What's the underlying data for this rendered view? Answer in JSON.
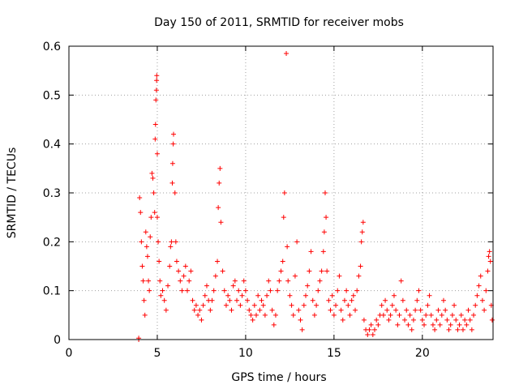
{
  "chart_data": {
    "type": "scatter",
    "title": "Day 150 of 2011, SRMTID for receiver mobs",
    "xlabel": "GPS time / hours",
    "ylabel": "SRMTID / TECUs",
    "xlim": [
      0,
      24
    ],
    "ylim": [
      0,
      0.6
    ],
    "xticks": [
      "0",
      "5",
      "10",
      "15",
      "20"
    ],
    "yticks": [
      "0",
      "0.1",
      "0.2",
      "0.3",
      "0.4",
      "0.5",
      "0.6"
    ],
    "xtick_values": [
      0,
      5,
      10,
      15,
      20
    ],
    "ytick_values": [
      0,
      0.1,
      0.2,
      0.3,
      0.4,
      0.5,
      0.6
    ],
    "grid": true,
    "marker": "+",
    "color": "#ff0000",
    "series": [
      {
        "name": "mobs",
        "points": [
          [
            3.95,
            0.0
          ],
          [
            3.95,
            0.003
          ],
          [
            4.0,
            0.29
          ],
          [
            4.05,
            0.26
          ],
          [
            4.1,
            0.2
          ],
          [
            4.15,
            0.15
          ],
          [
            4.2,
            0.12
          ],
          [
            4.25,
            0.08
          ],
          [
            4.3,
            0.05
          ],
          [
            4.35,
            0.22
          ],
          [
            4.4,
            0.19
          ],
          [
            4.45,
            0.17
          ],
          [
            4.5,
            0.12
          ],
          [
            4.55,
            0.1
          ],
          [
            4.6,
            0.21
          ],
          [
            4.65,
            0.25
          ],
          [
            4.7,
            0.34
          ],
          [
            4.75,
            0.33
          ],
          [
            4.8,
            0.3
          ],
          [
            4.85,
            0.26
          ],
          [
            4.88,
            0.41
          ],
          [
            4.9,
            0.44
          ],
          [
            4.92,
            0.49
          ],
          [
            4.95,
            0.51
          ],
          [
            4.96,
            0.53
          ],
          [
            4.97,
            0.54
          ],
          [
            5.0,
            0.38
          ],
          [
            5.0,
            0.25
          ],
          [
            5.05,
            0.2
          ],
          [
            5.1,
            0.16
          ],
          [
            5.15,
            0.12
          ],
          [
            5.2,
            0.09
          ],
          [
            5.3,
            0.1
          ],
          [
            5.4,
            0.08
          ],
          [
            5.5,
            0.06
          ],
          [
            5.6,
            0.11
          ],
          [
            5.7,
            0.15
          ],
          [
            5.75,
            0.19
          ],
          [
            5.8,
            0.2
          ],
          [
            5.85,
            0.32
          ],
          [
            5.87,
            0.36
          ],
          [
            5.9,
            0.4
          ],
          [
            5.92,
            0.42
          ],
          [
            6.0,
            0.3
          ],
          [
            6.05,
            0.2
          ],
          [
            6.1,
            0.16
          ],
          [
            6.2,
            0.14
          ],
          [
            6.3,
            0.12
          ],
          [
            6.4,
            0.1
          ],
          [
            6.5,
            0.13
          ],
          [
            6.6,
            0.15
          ],
          [
            6.7,
            0.1
          ],
          [
            6.8,
            0.12
          ],
          [
            6.9,
            0.14
          ],
          [
            7.0,
            0.08
          ],
          [
            7.1,
            0.06
          ],
          [
            7.2,
            0.07
          ],
          [
            7.3,
            0.05
          ],
          [
            7.4,
            0.06
          ],
          [
            7.5,
            0.04
          ],
          [
            7.6,
            0.07
          ],
          [
            7.7,
            0.09
          ],
          [
            7.8,
            0.11
          ],
          [
            7.9,
            0.08
          ],
          [
            8.0,
            0.06
          ],
          [
            8.1,
            0.08
          ],
          [
            8.2,
            0.1
          ],
          [
            8.3,
            0.13
          ],
          [
            8.4,
            0.16
          ],
          [
            8.45,
            0.27
          ],
          [
            8.5,
            0.32
          ],
          [
            8.55,
            0.35
          ],
          [
            8.6,
            0.24
          ],
          [
            8.7,
            0.14
          ],
          [
            8.8,
            0.1
          ],
          [
            8.9,
            0.07
          ],
          [
            9.0,
            0.09
          ],
          [
            9.1,
            0.08
          ],
          [
            9.2,
            0.06
          ],
          [
            9.3,
            0.11
          ],
          [
            9.4,
            0.12
          ],
          [
            9.5,
            0.08
          ],
          [
            9.6,
            0.1
          ],
          [
            9.7,
            0.07
          ],
          [
            9.8,
            0.09
          ],
          [
            9.9,
            0.12
          ],
          [
            10.0,
            0.1
          ],
          [
            10.1,
            0.08
          ],
          [
            10.2,
            0.06
          ],
          [
            10.3,
            0.05
          ],
          [
            10.4,
            0.04
          ],
          [
            10.5,
            0.07
          ],
          [
            10.6,
            0.05
          ],
          [
            10.7,
            0.09
          ],
          [
            10.8,
            0.06
          ],
          [
            10.9,
            0.08
          ],
          [
            11.0,
            0.07
          ],
          [
            11.1,
            0.05
          ],
          [
            11.2,
            0.09
          ],
          [
            11.3,
            0.12
          ],
          [
            11.4,
            0.1
          ],
          [
            11.5,
            0.06
          ],
          [
            11.6,
            0.03
          ],
          [
            11.7,
            0.05
          ],
          [
            11.8,
            0.1
          ],
          [
            11.9,
            0.12
          ],
          [
            12.0,
            0.14
          ],
          [
            12.1,
            0.16
          ],
          [
            12.15,
            0.25
          ],
          [
            12.2,
            0.3
          ],
          [
            12.3,
            0.585
          ],
          [
            12.35,
            0.19
          ],
          [
            12.4,
            0.12
          ],
          [
            12.5,
            0.09
          ],
          [
            12.6,
            0.07
          ],
          [
            12.7,
            0.05
          ],
          [
            12.8,
            0.13
          ],
          [
            12.9,
            0.2
          ],
          [
            13.0,
            0.06
          ],
          [
            13.1,
            0.04
          ],
          [
            13.2,
            0.02
          ],
          [
            13.3,
            0.07
          ],
          [
            13.4,
            0.09
          ],
          [
            13.5,
            0.11
          ],
          [
            13.6,
            0.14
          ],
          [
            13.7,
            0.18
          ],
          [
            13.8,
            0.08
          ],
          [
            13.9,
            0.05
          ],
          [
            14.0,
            0.07
          ],
          [
            14.1,
            0.1
          ],
          [
            14.2,
            0.12
          ],
          [
            14.3,
            0.14
          ],
          [
            14.4,
            0.18
          ],
          [
            14.45,
            0.22
          ],
          [
            14.5,
            0.3
          ],
          [
            14.55,
            0.25
          ],
          [
            14.6,
            0.14
          ],
          [
            14.7,
            0.08
          ],
          [
            14.8,
            0.06
          ],
          [
            14.9,
            0.09
          ],
          [
            15.0,
            0.05
          ],
          [
            15.1,
            0.07
          ],
          [
            15.2,
            0.1
          ],
          [
            15.3,
            0.13
          ],
          [
            15.4,
            0.06
          ],
          [
            15.5,
            0.04
          ],
          [
            15.6,
            0.08
          ],
          [
            15.7,
            0.1
          ],
          [
            15.8,
            0.07
          ],
          [
            15.9,
            0.05
          ],
          [
            16.0,
            0.08
          ],
          [
            16.1,
            0.09
          ],
          [
            16.2,
            0.06
          ],
          [
            16.3,
            0.1
          ],
          [
            16.4,
            0.13
          ],
          [
            16.5,
            0.15
          ],
          [
            16.55,
            0.2
          ],
          [
            16.6,
            0.22
          ],
          [
            16.65,
            0.24
          ],
          [
            16.7,
            0.04
          ],
          [
            16.8,
            0.02
          ],
          [
            16.9,
            0.01
          ],
          [
            17.0,
            0.02
          ],
          [
            17.1,
            0.03
          ],
          [
            17.2,
            0.01
          ],
          [
            17.3,
            0.02
          ],
          [
            17.4,
            0.04
          ],
          [
            17.5,
            0.03
          ],
          [
            17.6,
            0.05
          ],
          [
            17.7,
            0.07
          ],
          [
            17.8,
            0.05
          ],
          [
            17.9,
            0.08
          ],
          [
            18.0,
            0.06
          ],
          [
            18.1,
            0.04
          ],
          [
            18.2,
            0.05
          ],
          [
            18.3,
            0.07
          ],
          [
            18.4,
            0.09
          ],
          [
            18.5,
            0.06
          ],
          [
            18.6,
            0.03
          ],
          [
            18.7,
            0.05
          ],
          [
            18.8,
            0.12
          ],
          [
            18.9,
            0.08
          ],
          [
            19.0,
            0.04
          ],
          [
            19.1,
            0.06
          ],
          [
            19.2,
            0.03
          ],
          [
            19.3,
            0.05
          ],
          [
            19.4,
            0.02
          ],
          [
            19.5,
            0.04
          ],
          [
            19.6,
            0.06
          ],
          [
            19.7,
            0.08
          ],
          [
            19.8,
            0.1
          ],
          [
            19.9,
            0.06
          ],
          [
            20.0,
            0.04
          ],
          [
            20.1,
            0.03
          ],
          [
            20.2,
            0.05
          ],
          [
            20.3,
            0.07
          ],
          [
            20.4,
            0.09
          ],
          [
            20.5,
            0.05
          ],
          [
            20.6,
            0.03
          ],
          [
            20.7,
            0.02
          ],
          [
            20.8,
            0.04
          ],
          [
            20.9,
            0.06
          ],
          [
            21.0,
            0.03
          ],
          [
            21.1,
            0.05
          ],
          [
            21.2,
            0.08
          ],
          [
            21.3,
            0.06
          ],
          [
            21.4,
            0.04
          ],
          [
            21.5,
            0.02
          ],
          [
            21.6,
            0.03
          ],
          [
            21.7,
            0.05
          ],
          [
            21.8,
            0.07
          ],
          [
            21.9,
            0.04
          ],
          [
            22.0,
            0.02
          ],
          [
            22.1,
            0.03
          ],
          [
            22.2,
            0.05
          ],
          [
            22.3,
            0.02
          ],
          [
            22.4,
            0.04
          ],
          [
            22.5,
            0.03
          ],
          [
            22.6,
            0.06
          ],
          [
            22.7,
            0.04
          ],
          [
            22.8,
            0.02
          ],
          [
            22.9,
            0.05
          ],
          [
            23.0,
            0.07
          ],
          [
            23.1,
            0.09
          ],
          [
            23.2,
            0.11
          ],
          [
            23.3,
            0.13
          ],
          [
            23.4,
            0.08
          ],
          [
            23.5,
            0.06
          ],
          [
            23.6,
            0.1
          ],
          [
            23.7,
            0.14
          ],
          [
            23.75,
            0.17
          ],
          [
            23.8,
            0.18
          ],
          [
            23.85,
            0.16
          ],
          [
            23.9,
            0.07
          ],
          [
            23.95,
            0.04
          ]
        ]
      }
    ]
  }
}
